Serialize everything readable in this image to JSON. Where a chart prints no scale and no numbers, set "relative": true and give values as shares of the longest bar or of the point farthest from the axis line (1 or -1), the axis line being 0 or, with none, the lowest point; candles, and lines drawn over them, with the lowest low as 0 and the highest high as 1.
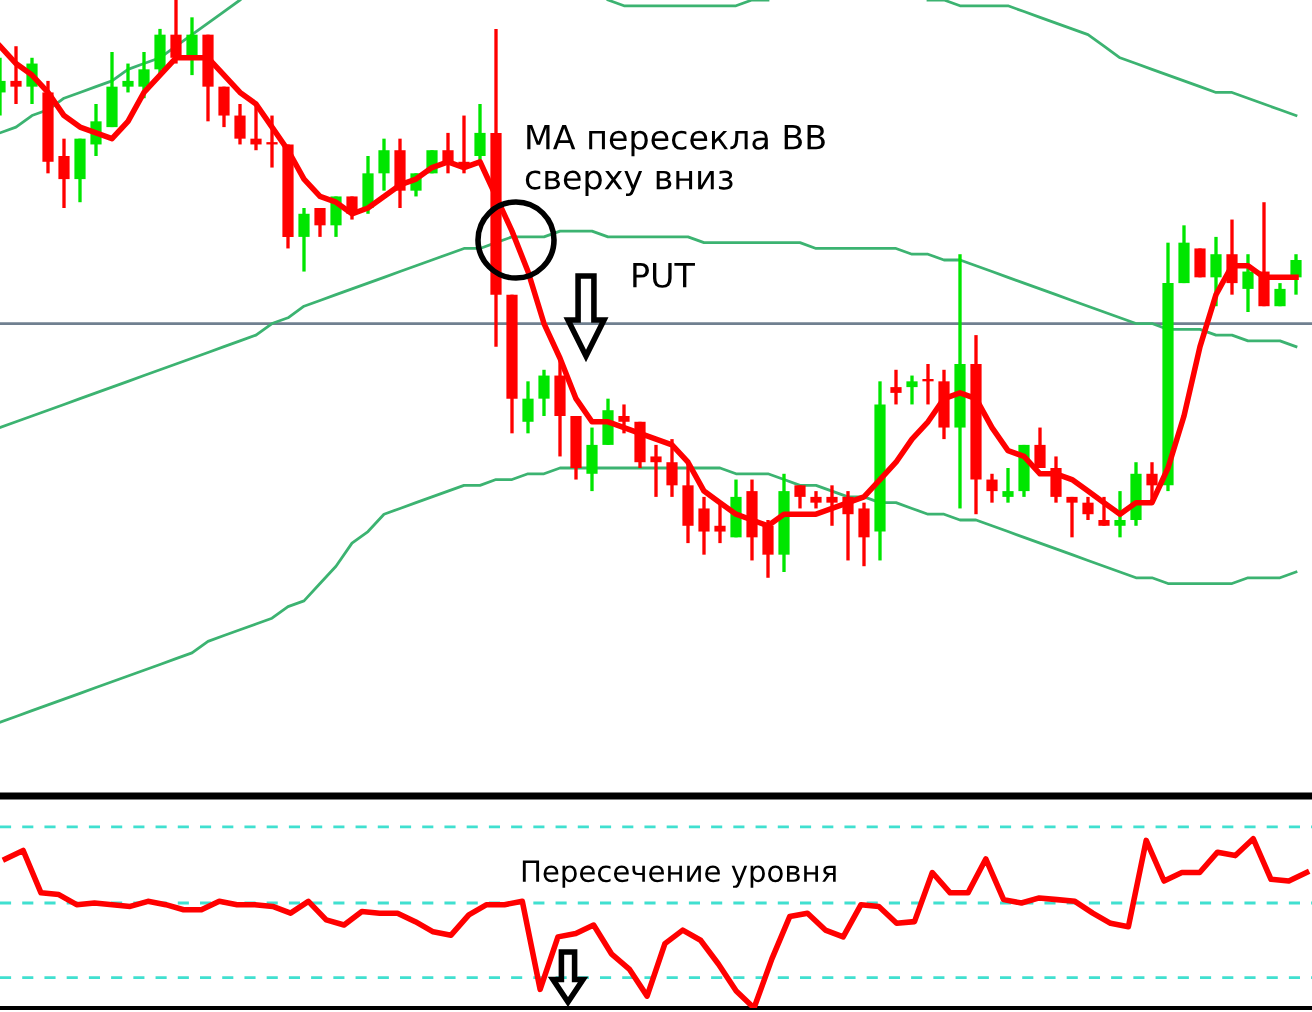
{
  "chart_data": [
    {
      "type": "candlestick",
      "relative": true,
      "categories": [
        null,
        null,
        null,
        null,
        null,
        null,
        null,
        null,
        null,
        null,
        null,
        null,
        null,
        null,
        null,
        null,
        null,
        null,
        null,
        null,
        null,
        null,
        null,
        null,
        null,
        null,
        null,
        null,
        null,
        null,
        null,
        null,
        null,
        null,
        null,
        null,
        null,
        null,
        null,
        null,
        null,
        null,
        null,
        null,
        null,
        null,
        null,
        null,
        null,
        null,
        null,
        null,
        null,
        null,
        null,
        null,
        null,
        null,
        null,
        null,
        null,
        null,
        null,
        null,
        null,
        null,
        null,
        null,
        null,
        null,
        null,
        null,
        null,
        null,
        null,
        null,
        null,
        null,
        null,
        null,
        null,
        null
      ],
      "ohlc": [
        [
          0.84,
          0.9,
          0.8,
          0.86
        ],
        [
          0.86,
          0.92,
          0.82,
          0.85
        ],
        [
          0.85,
          0.9,
          0.82,
          0.89
        ],
        [
          0.84,
          0.86,
          0.7,
          0.72
        ],
        [
          0.73,
          0.76,
          0.64,
          0.69
        ],
        [
          0.69,
          0.76,
          0.65,
          0.76
        ],
        [
          0.75,
          0.82,
          0.73,
          0.79
        ],
        [
          0.78,
          0.91,
          0.78,
          0.85
        ],
        [
          0.85,
          0.89,
          0.84,
          0.86
        ],
        [
          0.85,
          0.91,
          0.83,
          0.88
        ],
        [
          0.88,
          0.95,
          0.87,
          0.94
        ],
        [
          0.94,
          1.0,
          0.89,
          0.9
        ],
        [
          0.9,
          0.97,
          0.87,
          0.94
        ],
        [
          0.94,
          0.94,
          0.79,
          0.85
        ],
        [
          0.85,
          0.85,
          0.78,
          0.8
        ],
        [
          0.8,
          0.82,
          0.75,
          0.76
        ],
        [
          0.76,
          0.82,
          0.74,
          0.75
        ],
        [
          0.75,
          0.8,
          0.71,
          0.75
        ],
        [
          0.75,
          0.75,
          0.57,
          0.59
        ],
        [
          0.59,
          0.64,
          0.53,
          0.63
        ],
        [
          0.64,
          0.64,
          0.59,
          0.61
        ],
        [
          0.61,
          0.66,
          0.59,
          0.66
        ],
        [
          0.66,
          0.66,
          0.62,
          0.63
        ],
        [
          0.64,
          0.73,
          0.63,
          0.7
        ],
        [
          0.7,
          0.76,
          0.67,
          0.74
        ],
        [
          0.74,
          0.76,
          0.64,
          0.67
        ],
        [
          0.67,
          0.7,
          0.66,
          0.7
        ],
        [
          0.7,
          0.74,
          0.7,
          0.74
        ],
        [
          0.74,
          0.77,
          0.7,
          0.72
        ],
        [
          0.72,
          0.8,
          0.7,
          0.71
        ],
        [
          0.73,
          0.82,
          0.72,
          0.77
        ],
        [
          0.77,
          0.95,
          0.4,
          0.49
        ],
        [
          0.49,
          0.49,
          0.25,
          0.31
        ],
        [
          0.27,
          0.34,
          0.25,
          0.31
        ],
        [
          0.31,
          0.36,
          0.28,
          0.35
        ],
        [
          0.35,
          0.38,
          0.21,
          0.28
        ],
        [
          0.28,
          0.28,
          0.17,
          0.19
        ],
        [
          0.18,
          0.26,
          0.15,
          0.23
        ],
        [
          0.23,
          0.31,
          0.23,
          0.29
        ],
        [
          0.28,
          0.3,
          0.25,
          0.27
        ],
        [
          0.27,
          0.27,
          0.19,
          0.2
        ],
        [
          0.21,
          0.23,
          0.14,
          0.2
        ],
        [
          0.2,
          0.24,
          0.14,
          0.16
        ],
        [
          0.16,
          0.2,
          0.06,
          0.09
        ],
        [
          0.12,
          0.14,
          0.04,
          0.08
        ],
        [
          0.09,
          0.13,
          0.06,
          0.08
        ],
        [
          0.07,
          0.17,
          0.07,
          0.14
        ],
        [
          0.15,
          0.17,
          0.03,
          0.07
        ],
        [
          0.09,
          0.1,
          0.0,
          0.04
        ],
        [
          0.04,
          0.18,
          0.01,
          0.15
        ],
        [
          0.16,
          0.16,
          0.12,
          0.14
        ],
        [
          0.14,
          0.15,
          0.12,
          0.13
        ],
        [
          0.14,
          0.16,
          0.09,
          0.13
        ],
        [
          0.14,
          0.15,
          0.03,
          0.11
        ],
        [
          0.12,
          0.13,
          0.02,
          0.07
        ],
        [
          0.08,
          0.34,
          0.03,
          0.3
        ],
        [
          0.33,
          0.36,
          0.3,
          0.32
        ],
        [
          0.33,
          0.35,
          0.3,
          0.34
        ],
        [
          0.34,
          0.37,
          0.3,
          0.34
        ],
        [
          0.34,
          0.36,
          0.24,
          0.26
        ],
        [
          0.26,
          0.56,
          0.12,
          0.37
        ],
        [
          0.37,
          0.42,
          0.11,
          0.17
        ],
        [
          0.17,
          0.18,
          0.13,
          0.15
        ],
        [
          0.14,
          0.19,
          0.13,
          0.15
        ],
        [
          0.15,
          0.23,
          0.14,
          0.23
        ],
        [
          0.23,
          0.26,
          0.19,
          0.19
        ],
        [
          0.19,
          0.21,
          0.13,
          0.14
        ],
        [
          0.14,
          0.14,
          0.07,
          0.13
        ],
        [
          0.13,
          0.14,
          0.1,
          0.11
        ],
        [
          0.1,
          0.14,
          0.09,
          0.09
        ],
        [
          0.09,
          0.15,
          0.07,
          0.1
        ],
        [
          0.1,
          0.2,
          0.09,
          0.18
        ],
        [
          0.18,
          0.2,
          0.13,
          0.16
        ],
        [
          0.16,
          0.58,
          0.15,
          0.51
        ],
        [
          0.51,
          0.61,
          0.51,
          0.58
        ],
        [
          0.57,
          0.57,
          0.52,
          0.52
        ],
        [
          0.52,
          0.59,
          0.47,
          0.56
        ],
        [
          0.56,
          0.62,
          0.49,
          0.51
        ],
        [
          0.5,
          0.56,
          0.46,
          0.53
        ],
        [
          0.53,
          0.65,
          0.47,
          0.47
        ],
        [
          0.47,
          0.51,
          0.47,
          0.5
        ],
        [
          0.52,
          0.56,
          0.49,
          0.55
        ]
      ],
      "colors": [
        "#00e600",
        "#ff0000",
        "#00e600",
        "#ff0000",
        "#ff0000",
        "#00e600",
        "#00e600",
        "#00e600",
        "#00e600",
        "#00e600",
        "#00e600",
        "#ff0000",
        "#00e600",
        "#ff0000",
        "#ff0000",
        "#ff0000",
        "#ff0000",
        "#ff0000",
        "#ff0000",
        "#00e600",
        "#ff0000",
        "#00e600",
        "#ff0000",
        "#00e600",
        "#00e600",
        "#ff0000",
        "#00e600",
        "#00e600",
        "#ff0000",
        "#ff0000",
        "#00e600",
        "#ff0000",
        "#ff0000",
        "#00e600",
        "#00e600",
        "#ff0000",
        "#ff0000",
        "#00e600",
        "#00e600",
        "#ff0000",
        "#ff0000",
        "#ff0000",
        "#ff0000",
        "#ff0000",
        "#ff0000",
        "#ff0000",
        "#00e600",
        "#ff0000",
        "#ff0000",
        "#00e600",
        "#ff0000",
        "#ff0000",
        "#ff0000",
        "#ff0000",
        "#ff0000",
        "#00e600",
        "#ff0000",
        "#00e600",
        "#ff0000",
        "#ff0000",
        "#00e600",
        "#ff0000",
        "#ff0000",
        "#00e600",
        "#00e600",
        "#ff0000",
        "#ff0000",
        "#ff0000",
        "#ff0000",
        "#ff0000",
        "#00e600",
        "#00e600",
        "#ff0000",
        "#00e600",
        "#00e600",
        "#ff0000",
        "#00e600",
        "#ff0000",
        "#00e600",
        "#ff0000",
        "#00e600",
        "#00e600"
      ],
      "series": [
        {
          "type": "line",
          "color": "#ff0000",
          "values": [
            0.92,
            0.89,
            0.87,
            0.84,
            0.8,
            0.78,
            0.77,
            0.76,
            0.79,
            0.84,
            0.87,
            0.9,
            0.9,
            0.9,
            0.87,
            0.84,
            0.82,
            0.78,
            0.74,
            0.69,
            0.66,
            0.65,
            0.63,
            0.64,
            0.66,
            0.68,
            0.69,
            0.71,
            0.72,
            0.71,
            0.72,
            0.66,
            0.6,
            0.53,
            0.44,
            0.38,
            0.31,
            0.27,
            0.27,
            0.26,
            0.25,
            0.24,
            0.23,
            0.2,
            0.15,
            0.13,
            0.11,
            0.1,
            0.09,
            0.11,
            0.11,
            0.11,
            0.12,
            0.13,
            0.14,
            0.17,
            0.2,
            0.24,
            0.27,
            0.31,
            0.32,
            0.31,
            0.26,
            0.22,
            0.21,
            0.18,
            0.18,
            0.17,
            0.15,
            0.13,
            0.11,
            0.13,
            0.13,
            0.19,
            0.28,
            0.4,
            0.49,
            0.54,
            0.54,
            0.52,
            0.52,
            0.52
          ]
        },
        {
          "type": "line",
          "color": "#3cb371",
          "values": [
            0.77,
            0.78,
            0.8,
            0.81,
            0.83,
            0.84,
            0.85,
            0.86,
            0.88,
            0.89,
            0.9,
            0.92,
            0.94,
            0.96,
            0.98,
            1.0,
            null,
            null,
            null,
            null,
            null,
            null,
            null,
            null,
            null,
            null,
            null,
            null,
            null,
            null,
            null,
            null,
            null,
            null,
            null,
            null,
            null,
            null,
            1.0,
            0.99,
            0.99,
            0.99,
            0.99,
            0.99,
            0.99,
            0.99,
            0.99,
            1.0,
            1.0,
            null,
            null,
            null,
            null,
            null,
            null,
            null,
            null,
            null,
            1.0,
            1.0,
            0.99,
            0.99,
            0.99,
            0.99,
            0.98,
            0.97,
            0.96,
            0.95,
            0.94,
            0.92,
            0.9,
            0.89,
            0.88,
            0.87,
            0.86,
            0.85,
            0.84,
            0.84,
            0.83,
            0.82,
            0.81,
            0.8
          ]
        },
        {
          "type": "line",
          "color": "#3cb371",
          "values": [
            0.26,
            0.27,
            0.28,
            0.29,
            0.3,
            0.31,
            0.32,
            0.33,
            0.34,
            0.35,
            0.36,
            0.37,
            0.38,
            0.39,
            0.4,
            0.41,
            0.42,
            0.44,
            0.45,
            0.47,
            0.48,
            0.49,
            0.5,
            0.51,
            0.52,
            0.53,
            0.54,
            0.55,
            0.56,
            0.57,
            0.57,
            0.58,
            0.59,
            0.59,
            0.59,
            0.6,
            0.6,
            0.6,
            0.59,
            0.59,
            0.59,
            0.59,
            0.59,
            0.59,
            0.58,
            0.58,
            0.58,
            0.58,
            0.58,
            0.58,
            0.58,
            0.57,
            0.57,
            0.57,
            0.57,
            0.57,
            0.57,
            0.56,
            0.56,
            0.55,
            0.55,
            0.54,
            0.53,
            0.52,
            0.51,
            0.5,
            0.49,
            0.48,
            0.47,
            0.46,
            0.45,
            0.44,
            0.44,
            0.43,
            0.43,
            0.43,
            0.42,
            0.42,
            0.41,
            0.41,
            0.41,
            0.4
          ]
        },
        {
          "type": "line",
          "color": "#3cb371",
          "values": [
            -0.25,
            -0.24,
            -0.23,
            -0.22,
            -0.21,
            -0.2,
            -0.19,
            -0.18,
            -0.17,
            -0.16,
            -0.15,
            -0.14,
            -0.13,
            -0.11,
            -0.1,
            -0.09,
            -0.08,
            -0.07,
            -0.05,
            -0.04,
            -0.01,
            0.02,
            0.06,
            0.08,
            0.11,
            0.12,
            0.13,
            0.14,
            0.15,
            0.16,
            0.16,
            0.17,
            0.17,
            0.18,
            0.18,
            0.19,
            0.19,
            0.19,
            0.19,
            0.19,
            0.19,
            0.19,
            0.19,
            0.19,
            0.19,
            0.19,
            0.18,
            0.18,
            0.18,
            0.17,
            0.16,
            0.16,
            0.15,
            0.14,
            0.14,
            0.13,
            0.13,
            0.12,
            0.11,
            0.11,
            0.1,
            0.1,
            0.09,
            0.08,
            0.07,
            0.06,
            0.05,
            0.04,
            0.03,
            0.02,
            0.01,
            0.0,
            0.0,
            -0.01,
            -0.01,
            -0.01,
            -0.01,
            -0.01,
            0.0,
            0.0,
            0.0,
            0.01
          ]
        }
      ],
      "ref_lines": [
        {
          "axis": "y",
          "value": 0.44,
          "color": "#708090"
        }
      ],
      "annotations": [
        "MA пересекла BB\nсверху вниз",
        "PUT"
      ]
    },
    {
      "type": "line",
      "relative": true,
      "categories": [
        null,
        null,
        null,
        null,
        null,
        null,
        null,
        null,
        null,
        null,
        null,
        null,
        null,
        null,
        null,
        null,
        null,
        null,
        null,
        null,
        null,
        null,
        null,
        null,
        null,
        null,
        null,
        null,
        null,
        null,
        null,
        null,
        null,
        null,
        null,
        null,
        null,
        null,
        null,
        null,
        null,
        null,
        null,
        null,
        null,
        null,
        null,
        null,
        null,
        null,
        null,
        null,
        null,
        null,
        null,
        null,
        null,
        null,
        null,
        null,
        null,
        null,
        null,
        null,
        null,
        null,
        null,
        null,
        null,
        null,
        null,
        null,
        null,
        null
      ],
      "series": [
        {
          "color": "#ff0000",
          "values": [
            0.88,
            0.93,
            0.68,
            0.67,
            0.61,
            0.62,
            0.61,
            0.6,
            0.63,
            0.61,
            0.58,
            0.58,
            0.63,
            0.61,
            0.61,
            0.6,
            0.56,
            0.63,
            0.52,
            0.49,
            0.57,
            0.56,
            0.56,
            0.51,
            0.45,
            0.43,
            0.55,
            0.61,
            0.61,
            0.63,
            0.11,
            0.42,
            0.44,
            0.49,
            0.32,
            0.23,
            0.07,
            0.38,
            0.46,
            0.4,
            0.26,
            0.1,
            0.0,
            0.29,
            0.54,
            0.56,
            0.46,
            0.42,
            0.61,
            0.6,
            0.5,
            0.51,
            0.8,
            0.68,
            0.68,
            0.88,
            0.64,
            0.62,
            0.65,
            0.64,
            0.63,
            0.56,
            0.5,
            0.48,
            0.99,
            0.75,
            0.8,
            0.8,
            0.92,
            0.9,
            1.0,
            0.76,
            0.75,
            0.8
          ]
        }
      ],
      "ref_lines": [
        {
          "axis": "y",
          "value": 1.07,
          "color": "#40e0d0",
          "line_style": "dashed"
        },
        {
          "axis": "y",
          "value": 0.62,
          "color": "#40e0d0",
          "line_style": "dashed"
        },
        {
          "axis": "y",
          "value": 0.18,
          "color": "#40e0d0",
          "line_style": "dashed"
        }
      ],
      "annotations": [
        "Пересечение уровня"
      ]
    }
  ]
}
